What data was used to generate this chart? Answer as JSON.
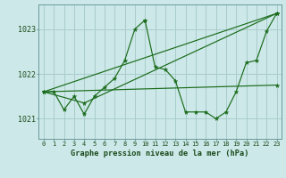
{
  "background_color": "#cce8e8",
  "grid_color": "#aacccc",
  "line_color": "#1a6b1a",
  "title": "Graphe pression niveau de la mer (hPa)",
  "ylabel_ticks": [
    1021,
    1022,
    1023
  ],
  "xlim": [
    -0.5,
    23.5
  ],
  "ylim": [
    1020.55,
    1023.55
  ],
  "series": [
    {
      "x": [
        0,
        1,
        2,
        3,
        4,
        5,
        6,
        7,
        8,
        9,
        10
      ],
      "y": [
        1021.6,
        1021.6,
        1021.2,
        1021.5,
        1021.1,
        1021.5,
        1021.7,
        1021.9,
        1022.3,
        1023.0,
        1023.2
      ]
    },
    {
      "x": [
        10,
        11,
        12,
        13,
        14,
        15,
        16,
        17,
        18,
        19,
        20,
        21,
        22,
        23
      ],
      "y": [
        1023.2,
        1022.15,
        1022.1,
        1021.85,
        1021.15,
        1021.15,
        1021.15,
        1021.0,
        1021.15,
        1021.6,
        1022.25,
        1022.3,
        1022.95,
        1023.35
      ]
    },
    {
      "x": [
        0,
        23
      ],
      "y": [
        1021.6,
        1023.35
      ]
    },
    {
      "x": [
        0,
        4,
        23
      ],
      "y": [
        1021.6,
        1021.35,
        1023.35
      ]
    },
    {
      "x": [
        0,
        23
      ],
      "y": [
        1021.6,
        1021.75
      ]
    }
  ],
  "xtick_labels": [
    "0",
    "1",
    "2",
    "3",
    "4",
    "5",
    "6",
    "7",
    "8",
    "9",
    "10",
    "11",
    "12",
    "13",
    "14",
    "15",
    "16",
    "17",
    "18",
    "19",
    "20",
    "21",
    "22",
    "23"
  ]
}
